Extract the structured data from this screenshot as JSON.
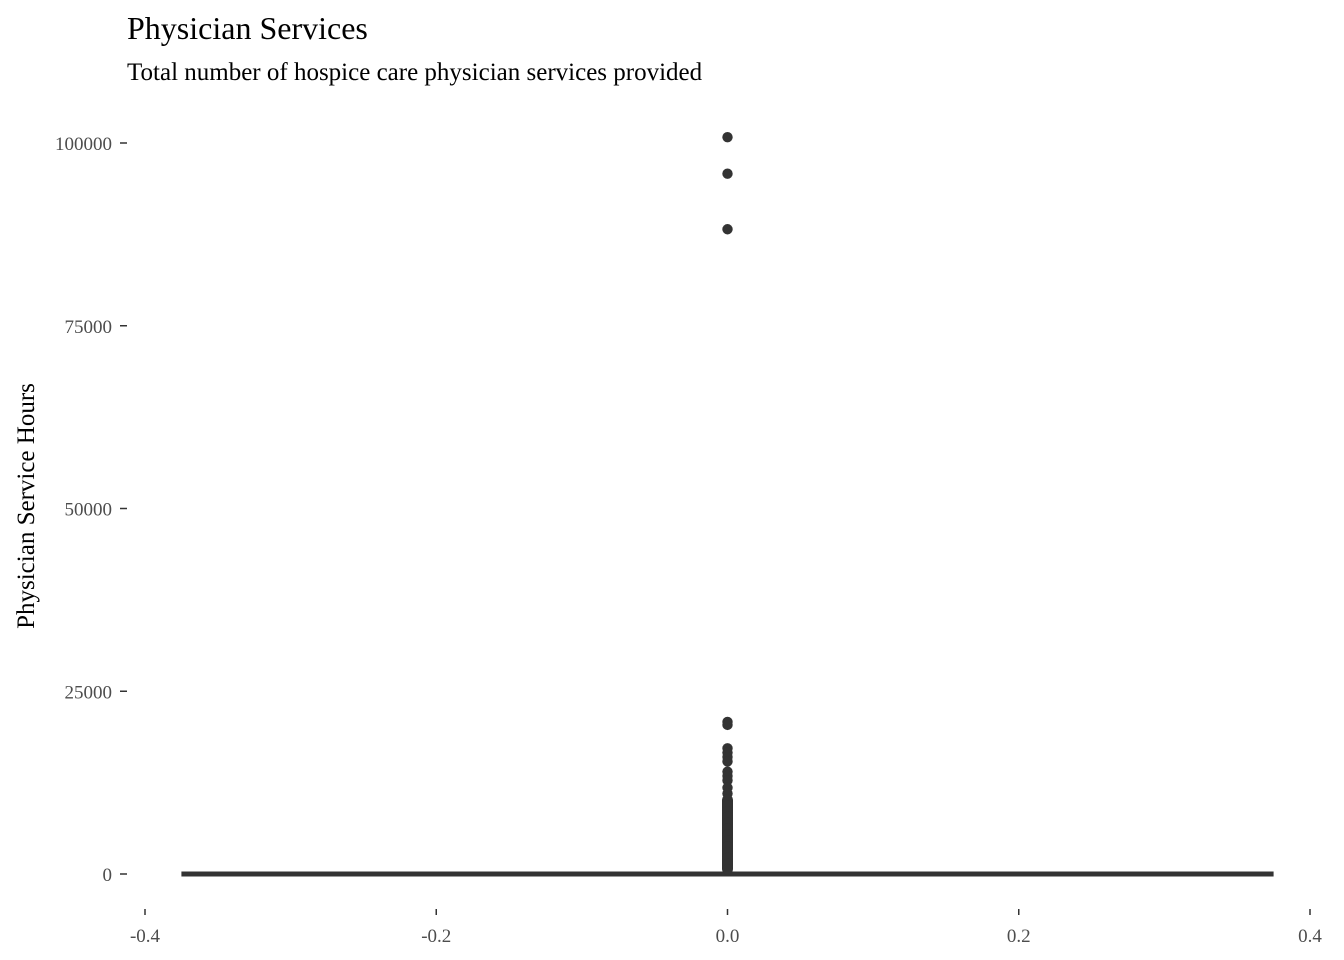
{
  "chart_data": {
    "type": "boxplot",
    "title": "Physician Services",
    "subtitle": "Total number of hospice care physician services provided",
    "xlabel": "",
    "ylabel": "Physician Service Hours",
    "xlim": [
      -0.4,
      0.4
    ],
    "ylim": [
      0,
      100000
    ],
    "x_ticks": [
      -0.4,
      -0.2,
      0.0,
      0.2,
      0.4
    ],
    "x_tick_labels": [
      "-0.4",
      "-0.2",
      "0.0",
      "0.2",
      "0.4"
    ],
    "y_ticks": [
      0,
      25000,
      50000,
      75000,
      100000
    ],
    "y_tick_labels": [
      "0",
      "25000",
      "50000",
      "75000",
      "100000"
    ],
    "grid": false,
    "box": {
      "x": 0,
      "x_extent": [
        -0.375,
        0.375
      ],
      "q1": 0,
      "median": 0,
      "q3": 0,
      "whisker_low": 0,
      "whisker_high": 0
    },
    "outliers": [
      {
        "x": 0,
        "y": 100800
      },
      {
        "x": 0,
        "y": 95800
      },
      {
        "x": 0,
        "y": 88200
      },
      {
        "x": 0,
        "y": 20800
      },
      {
        "x": 0,
        "y": 20400
      },
      {
        "x": 0,
        "y": 17200
      },
      {
        "x": 0,
        "y": 16600
      },
      {
        "x": 0,
        "y": 16000
      },
      {
        "x": 0,
        "y": 15400
      },
      {
        "x": 0,
        "y": 14000
      },
      {
        "x": 0,
        "y": 13400
      },
      {
        "x": 0,
        "y": 12800
      },
      {
        "x": 0,
        "y": 11800
      },
      {
        "x": 0,
        "y": 11000
      },
      {
        "x": 0,
        "y": 10200
      },
      {
        "x": 0,
        "y": 9400
      },
      {
        "x": 0,
        "y": 8600
      },
      {
        "x": 0,
        "y": 7800
      },
      {
        "x": 0,
        "y": 7000
      },
      {
        "x": 0,
        "y": 6200
      },
      {
        "x": 0,
        "y": 5400
      },
      {
        "x": 0,
        "y": 4600
      },
      {
        "x": 0,
        "y": 3800
      },
      {
        "x": 0,
        "y": 3000
      },
      {
        "x": 0,
        "y": 2200
      },
      {
        "x": 0,
        "y": 1400
      },
      {
        "x": 0,
        "y": 600
      }
    ],
    "colors": {
      "points": "#333333",
      "box": "#333333",
      "axis": "#333333",
      "tick_text": "#4d4d4d"
    }
  }
}
